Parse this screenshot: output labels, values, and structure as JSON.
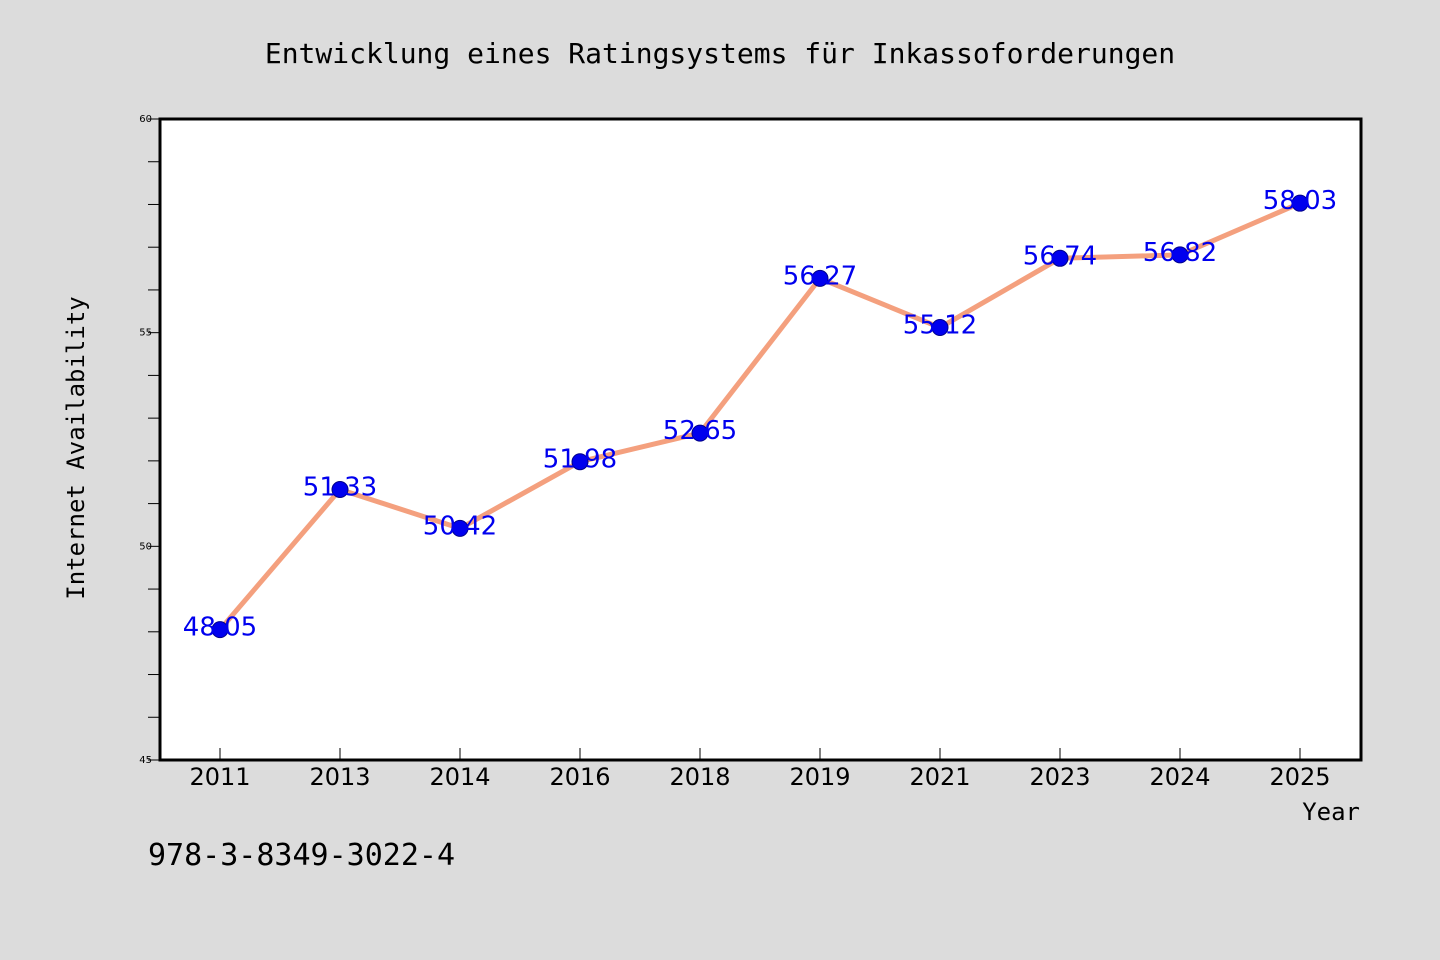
{
  "chart_data": {
    "type": "line",
    "title": "Entwicklung eines Ratingsystems für Inkassoforderungen",
    "xlabel": "Year",
    "ylabel": "Internet Availability",
    "categories": [
      "2011",
      "2013",
      "2014",
      "2016",
      "2018",
      "2019",
      "2021",
      "2023",
      "2024",
      "2025"
    ],
    "values": [
      48.05,
      51.33,
      50.42,
      51.98,
      52.65,
      56.27,
      55.12,
      56.74,
      56.82,
      58.03
    ],
    "data_labels": [
      "48.05",
      "51.33",
      "50.42",
      "51.98",
      "52.65",
      "56.27",
      "55.12",
      "56.74",
      "56.82",
      "58.03"
    ],
    "ylim": [
      45,
      60
    ],
    "y_major_ticks": [
      "45",
      "50",
      "55",
      "60"
    ],
    "grid": false,
    "legend": "none",
    "colors": {
      "line": "#f4a07e",
      "marker": "#0000ee",
      "data_label": "#0000ee",
      "frame": "#000000",
      "plot_background": "#ffffff",
      "figure_background": "#dcdcdc"
    }
  },
  "footer": {
    "isbn": "978-3-8349-3022-4"
  }
}
